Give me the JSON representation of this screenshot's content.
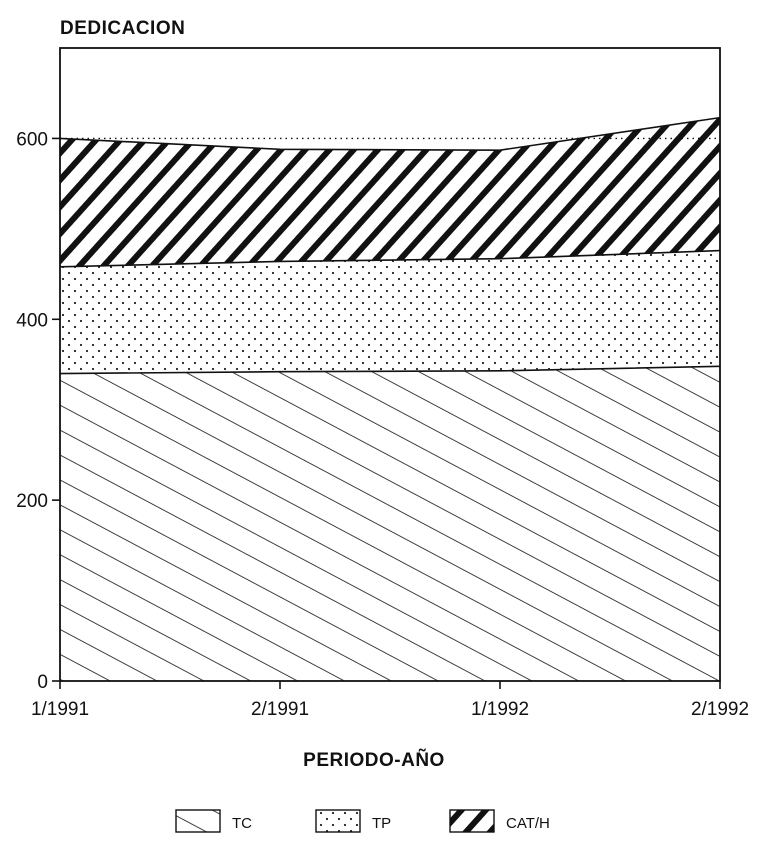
{
  "chart_data": {
    "type": "area",
    "title": "DEDICACION",
    "xlabel": "PERIODO-AÑO",
    "ylabel": "",
    "categories": [
      "1/1991",
      "2/1991",
      "1/1992",
      "2/1992"
    ],
    "ylim": [
      0,
      700
    ],
    "yticks": [
      0,
      200,
      400,
      600
    ],
    "stacked": true,
    "reference_line": {
      "value": 600,
      "style": "dotted"
    },
    "series": [
      {
        "name": "TC",
        "pattern": "diagonal-up",
        "values": [
          340,
          342,
          343,
          348
        ]
      },
      {
        "name": "TP",
        "pattern": "dots",
        "values": [
          118,
          122,
          124,
          128
        ]
      },
      {
        "name": "CAT/H",
        "pattern": "diagonal-down",
        "values": [
          142,
          124,
          120,
          147
        ]
      }
    ],
    "legend_position": "bottom-center",
    "grid": false
  },
  "colors": {
    "ink": "#111111",
    "background": "#ffffff"
  }
}
